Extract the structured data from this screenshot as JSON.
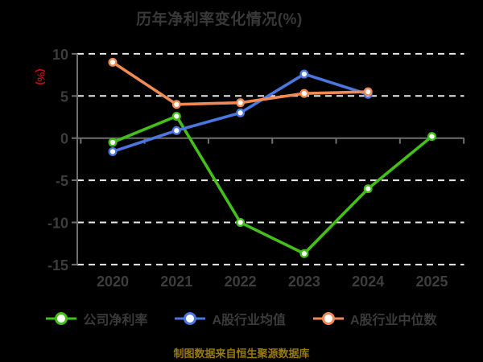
{
  "title": "历年净利率变化情况(%)",
  "axis": {
    "unit": "(%)"
  },
  "caption": {
    "text": "制图数据来自恒生聚源数据库"
  },
  "colors": {
    "background": "#000000",
    "gridline": "#e8e8e8",
    "axis_line": "#6f6f6f",
    "axis_label": "#3d3d3d",
    "title_text": "#383838",
    "unit_text": "#cf0a0a",
    "caption_text": "#977a08",
    "marker_fill": "#ffffff"
  },
  "chart_data": {
    "type": "line",
    "title": "历年净利率变化情况(%)",
    "ylabel": "(%)",
    "categories": [
      "2020",
      "2021",
      "2022",
      "2023",
      "2024",
      "2025"
    ],
    "series": [
      {
        "name": "公司净利率",
        "color": "#44bf19",
        "values": [
          -0.5,
          2.6,
          -10.0,
          -13.7,
          -6.0,
          0.2
        ]
      },
      {
        "name": "A股行业均值",
        "color": "#4a76dd",
        "values": [
          -1.6,
          0.9,
          3.0,
          7.6,
          5.2,
          null
        ]
      },
      {
        "name": "A股行业中位数",
        "color": "#ef8a55",
        "values": [
          9.0,
          4.0,
          4.2,
          5.3,
          5.5,
          null
        ]
      }
    ],
    "ylim": [
      -15,
      10
    ],
    "yticks": [
      10,
      5,
      0,
      -5,
      -10,
      -15
    ],
    "grid": "horizontal-dashed",
    "legend_position": "bottom",
    "marker": "circle-white-fill"
  }
}
